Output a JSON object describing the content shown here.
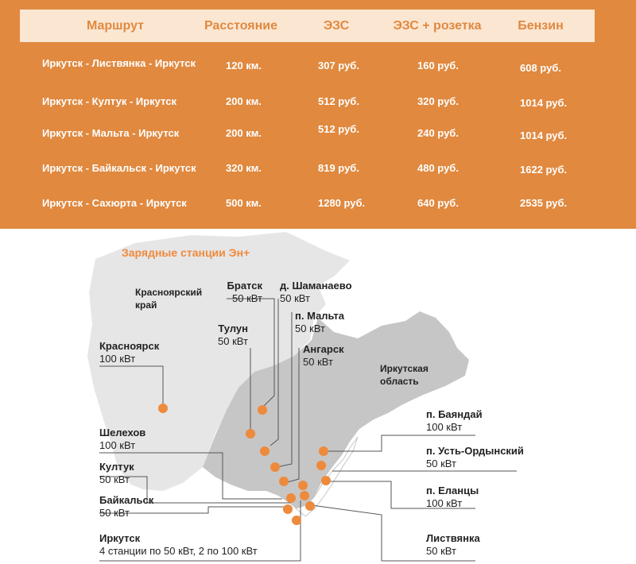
{
  "table": {
    "headers": [
      "Маршрут",
      "Расстояние",
      "ЭЗС",
      "ЭЗС + розетка",
      "Бензин"
    ],
    "rows": [
      [
        "Иркутск - Листвянка - Иркутск",
        "120 км.",
        "307 руб.",
        "160 руб.",
        "608 руб."
      ],
      [
        "Иркутск - Култук - Иркутск",
        "200 км.",
        "512 руб.",
        "320 руб.",
        "1014 руб."
      ],
      [
        "Иркутск - Мальта - Иркутск",
        "200 км.",
        "512 руб.",
        "240 руб.",
        "1014 руб."
      ],
      [
        "Иркутск - Байкальск - Иркутск",
        "320 км.",
        "819 руб.",
        "480 руб.",
        "1622 руб."
      ],
      [
        "Иркутск - Сахюрта - Иркутск",
        "500 км.",
        "1280 руб.",
        "640 руб.",
        "2535 руб."
      ]
    ]
  },
  "map": {
    "title": "Зарядные станции Эн+",
    "regions": {
      "krasnoyarsk_krai": [
        "Красноярский",
        "край"
      ],
      "irkutsk_oblast": [
        "Иркутская",
        "область"
      ]
    },
    "stations": {
      "bratsk": {
        "name": "Братск",
        "power": "50 кВт"
      },
      "shamanaevo": {
        "name": "д. Шаманаево",
        "power": "50 кВт"
      },
      "malta": {
        "name": "п. Мальта",
        "power": "50 кВт"
      },
      "tulun": {
        "name": "Тулун",
        "power": "50 кВт"
      },
      "angarsk": {
        "name": "Ангарск",
        "power": "50 кВт"
      },
      "krasnoyarsk": {
        "name": "Красноярск",
        "power": "100 кВт"
      },
      "shelekhov": {
        "name": "Шелехов",
        "power": "100 кВт"
      },
      "kultuk": {
        "name": "Култук",
        "power": "50 кВт"
      },
      "baikalsk": {
        "name": "Байкальск",
        "power": "50 кВт"
      },
      "irkutsk": {
        "name": "Иркутск",
        "power": "4 станции по 50 кВт, 2 по 100 кВт"
      },
      "bayanday": {
        "name": "п. Баяндай",
        "power": "100 кВт"
      },
      "ust_ordynsky": {
        "name": "п. Усть-Ордынский",
        "power": "50 кВт"
      },
      "elantsy": {
        "name": "п. Еланцы",
        "power": "100 кВт"
      },
      "listvyanka": {
        "name": "Листвянка",
        "power": "50 кВт"
      }
    },
    "colors": {
      "panel": "#e0893f",
      "header_bg": "#fbe6d2",
      "marker": "#ee8a3c",
      "region_light": "#e6e6e6",
      "region_dark": "#c6c6c6"
    }
  }
}
